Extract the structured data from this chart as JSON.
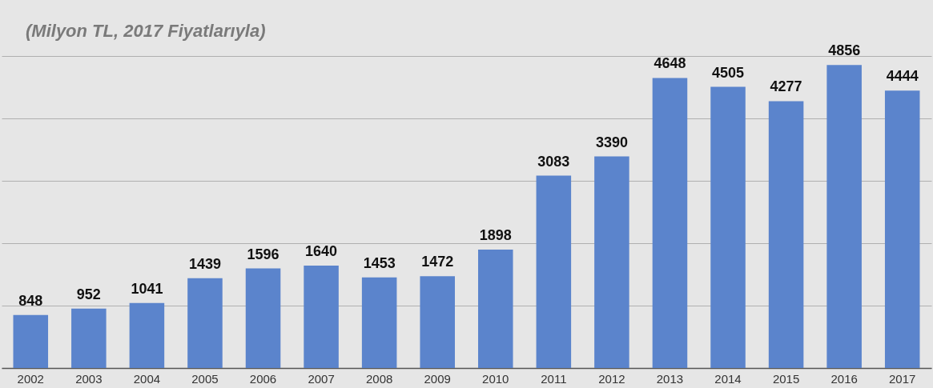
{
  "chart_data": {
    "type": "bar",
    "title": "(Milyon TL, 2017 Fiyatlarıyla)",
    "categories": [
      "2002",
      "2003",
      "2004",
      "2005",
      "2006",
      "2007",
      "2008",
      "2009",
      "2010",
      "2011",
      "2012",
      "2013",
      "2014",
      "2015",
      "2016",
      "2017"
    ],
    "values": [
      848,
      952,
      1041,
      1439,
      1596,
      1640,
      1453,
      1472,
      1898,
      3083,
      3390,
      4648,
      4505,
      4277,
      4856,
      4444
    ],
    "color": "#5b84cc",
    "data_labels": true,
    "grid": "y",
    "tick_labels": "x",
    "ylim": [
      0,
      5000
    ],
    "yticks": [
      {
        "value": 0,
        "label": null
      },
      {
        "value": 1000,
        "label": null
      },
      {
        "value": 2000,
        "label": null
      },
      {
        "value": 3000,
        "label": null
      },
      {
        "value": 4000,
        "label": null
      },
      {
        "value": 5000,
        "label": null
      }
    ]
  }
}
